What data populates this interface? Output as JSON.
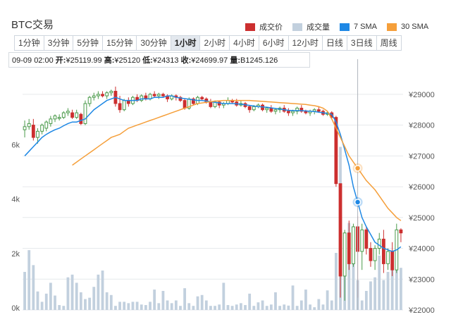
{
  "title": "BTC交易",
  "legend": [
    {
      "label": "成交价",
      "color": "#cc2f2f"
    },
    {
      "label": "成交量",
      "color": "#c2d0de"
    },
    {
      "label": "7 SMA",
      "color": "#1e88e5"
    },
    {
      "label": "30 SMA",
      "color": "#f59f3a"
    }
  ],
  "tabs": [
    "1分钟",
    "3分钟",
    "5分钟",
    "15分钟",
    "30分钟",
    "1小时",
    "2小时",
    "4小时",
    "6小时",
    "12小时",
    "日线",
    "3日线",
    "周线"
  ],
  "active_tab": "1小时",
  "tooltip": {
    "time": "09-09 02:00",
    "open_label": "开:",
    "open": "¥25119.99",
    "high_label": "高:",
    "high": "¥25120",
    "low_label": "低:",
    "low": "¥24313",
    "close_label": "收:",
    "close": "¥24699.97",
    "volume_label": "量:",
    "volume": "B1245.126"
  },
  "chart_data": {
    "type": "candlestick",
    "price_axis_labels": [
      "¥29000",
      "¥28000",
      "¥27000",
      "¥26000",
      "¥25000",
      "¥24000",
      "¥23000",
      "¥22000"
    ],
    "price_axis_values": [
      29000,
      28000,
      27000,
      26000,
      25000,
      24000,
      23000,
      22000
    ],
    "price_range": [
      22000,
      29500
    ],
    "volume_axis_labels": [
      "0k",
      "2k",
      "4k",
      "6k"
    ],
    "volume_axis_values": [
      0,
      2000,
      4000,
      6000
    ],
    "volume_range": [
      0,
      8500
    ],
    "up_color": "#4a9a4a",
    "down_color": "#cc2f2f",
    "ohlc": [
      [
        27850,
        28150,
        27600,
        27950
      ],
      [
        27950,
        28200,
        27850,
        28050
      ],
      [
        28000,
        28200,
        27500,
        27600
      ],
      [
        27600,
        27900,
        27400,
        27800
      ],
      [
        27800,
        28050,
        27700,
        28000
      ],
      [
        27900,
        28150,
        27800,
        28100
      ],
      [
        28050,
        28300,
        27950,
        28200
      ],
      [
        28200,
        28350,
        28100,
        28300
      ],
      [
        28250,
        28350,
        28150,
        28250
      ],
      [
        28250,
        28450,
        28200,
        28400
      ],
      [
        28400,
        28550,
        28300,
        28450
      ],
      [
        28400,
        28500,
        28200,
        28250
      ],
      [
        28250,
        28500,
        28200,
        28400
      ],
      [
        28350,
        28400,
        28000,
        28050
      ],
      [
        28050,
        28800,
        28000,
        28700
      ],
      [
        28700,
        28950,
        28600,
        28900
      ],
      [
        28900,
        29050,
        28800,
        28950
      ],
      [
        28950,
        29100,
        28850,
        29000
      ],
      [
        29000,
        29100,
        28900,
        28950
      ],
      [
        28950,
        29100,
        28850,
        29050
      ],
      [
        29050,
        29150,
        28950,
        29100
      ],
      [
        29100,
        29250,
        28600,
        28700
      ],
      [
        28700,
        28950,
        28400,
        28500
      ],
      [
        28500,
        28850,
        28450,
        28800
      ],
      [
        28800,
        28900,
        28600,
        28700
      ],
      [
        28700,
        28950,
        28650,
        28900
      ],
      [
        28900,
        29000,
        28750,
        28800
      ],
      [
        28800,
        29000,
        28750,
        28950
      ],
      [
        28950,
        29050,
        28800,
        28850
      ],
      [
        28850,
        29050,
        28800,
        29000
      ],
      [
        29000,
        29100,
        28900,
        28950
      ],
      [
        28950,
        29050,
        28850,
        29000
      ],
      [
        29000,
        29050,
        28900,
        28950
      ],
      [
        28950,
        29000,
        28750,
        28850
      ],
      [
        28850,
        29000,
        28800,
        28950
      ],
      [
        28950,
        29000,
        28800,
        28900
      ],
      [
        28900,
        28950,
        28750,
        28800
      ],
      [
        28800,
        28850,
        28500,
        28550
      ],
      [
        28550,
        28900,
        28500,
        28850
      ],
      [
        28850,
        28900,
        28650,
        28700
      ],
      [
        28700,
        28950,
        28650,
        28900
      ],
      [
        28900,
        28950,
        28800,
        28850
      ],
      [
        28850,
        28900,
        28700,
        28750
      ],
      [
        28750,
        28850,
        28550,
        28600
      ],
      [
        28600,
        28800,
        28550,
        28750
      ],
      [
        28750,
        28800,
        28550,
        28650
      ],
      [
        28650,
        28750,
        28550,
        28700
      ],
      [
        28700,
        28900,
        28650,
        28800
      ],
      [
        28800,
        28850,
        28700,
        28750
      ],
      [
        28750,
        28850,
        28600,
        28650
      ],
      [
        28650,
        28800,
        28600,
        28700
      ],
      [
        28700,
        28750,
        28550,
        28600
      ],
      [
        28600,
        28650,
        28400,
        28500
      ],
      [
        28500,
        28650,
        28450,
        28600
      ],
      [
        28600,
        28700,
        28550,
        28650
      ],
      [
        28650,
        28700,
        28450,
        28500
      ],
      [
        28500,
        28600,
        28400,
        28550
      ],
      [
        28550,
        28650,
        28400,
        28450
      ],
      [
        28450,
        28550,
        28350,
        28500
      ],
      [
        28500,
        28600,
        28400,
        28550
      ],
      [
        28550,
        28650,
        28400,
        28450
      ],
      [
        28450,
        28550,
        28300,
        28400
      ],
      [
        28400,
        28500,
        28300,
        28450
      ],
      [
        28450,
        28600,
        28350,
        28550
      ],
      [
        28550,
        28650,
        28400,
        28450
      ],
      [
        28450,
        28500,
        28350,
        28400
      ],
      [
        28400,
        28500,
        28300,
        28450
      ],
      [
        28450,
        28550,
        28350,
        28500
      ],
      [
        28500,
        28600,
        28400,
        28450
      ],
      [
        28450,
        28500,
        28300,
        28350
      ],
      [
        28350,
        28450,
        28300,
        28400
      ],
      [
        28400,
        28450,
        28200,
        28250
      ],
      [
        28250,
        28300,
        26000,
        26100
      ],
      [
        26100,
        26100,
        22400,
        23100
      ],
      [
        23100,
        24600,
        22300,
        24500
      ],
      [
        24500,
        24900,
        23300,
        23500
      ],
      [
        23500,
        24800,
        23400,
        24700
      ],
      [
        24700,
        25050,
        22400,
        23900
      ],
      [
        23900,
        24800,
        23300,
        24600
      ],
      [
        24600,
        24700,
        23800,
        24000
      ],
      [
        24000,
        24200,
        23400,
        23600
      ],
      [
        23600,
        24100,
        23300,
        24000
      ],
      [
        24000,
        24500,
        23800,
        24300
      ],
      [
        24300,
        24600,
        23200,
        23500
      ],
      [
        23500,
        24000,
        23300,
        23900
      ],
      [
        23900,
        24200,
        23100,
        23300
      ],
      [
        23300,
        24800,
        23200,
        24600
      ],
      [
        24600,
        24650,
        24200,
        24500
      ]
    ],
    "volume": [
      1400,
      2200,
      1650,
      680,
      300,
      600,
      1000,
      530,
      180,
      150,
      1200,
      1300,
      1000,
      650,
      400,
      450,
      850,
      1300,
      1450,
      650,
      550,
      150,
      300,
      300,
      250,
      300,
      300,
      200,
      180,
      300,
      750,
      250,
      700,
      350,
      250,
      350,
      150,
      800,
      250,
      150,
      500,
      550,
      350,
      150,
      150,
      200,
      1000,
      180,
      150,
      200,
      250,
      180,
      600,
      150,
      280,
      350,
      150,
      200,
      650,
      150,
      200,
      160,
      900,
      150,
      350,
      750,
      200,
      100,
      400,
      200,
      720,
      350,
      2100,
      6000,
      1500,
      3200,
      2100,
      1100,
      350,
      700,
      1050,
      1200,
      2000,
      1100,
      1400,
      2150,
      1600,
      1550
    ],
    "sma7": [
      27000,
      27150,
      27300,
      27450,
      27600,
      27700,
      27780,
      27850,
      27900,
      27980,
      28050,
      28100,
      28100,
      28150,
      28200,
      28350,
      28500,
      28600,
      28700,
      28800,
      28850,
      28900,
      28850,
      28800,
      28800,
      28800,
      28800,
      28850,
      28850,
      28850,
      28900,
      28900,
      28900,
      28950,
      28950,
      28900,
      28880,
      28860,
      28840,
      28820,
      28800,
      28800,
      28780,
      28760,
      28740,
      28720,
      28700,
      28700,
      28700,
      28690,
      28680,
      28660,
      28640,
      28620,
      28600,
      28590,
      28580,
      28560,
      28540,
      28520,
      28500,
      28480,
      28470,
      28470,
      28470,
      28460,
      28450,
      28440,
      28420,
      28400,
      28380,
      28350,
      28100,
      27700,
      27200,
      26700,
      26000,
      25500,
      25000,
      24700,
      24450,
      24200,
      24100,
      24000,
      23950,
      23900,
      23950,
      24050
    ],
    "sma30_start_index": 11,
    "sma30": [
      26700,
      26800,
      26900,
      27000,
      27100,
      27200,
      27300,
      27400,
      27500,
      27600,
      27650,
      27700,
      27800,
      27900,
      27950,
      28000,
      28050,
      28100,
      28150,
      28200,
      28250,
      28300,
      28350,
      28400,
      28450,
      28500,
      28550,
      28600,
      28650,
      28700,
      28720,
      28740,
      28760,
      28780,
      28790,
      28800,
      28800,
      28800,
      28800,
      28800,
      28800,
      28800,
      28790,
      28780,
      28770,
      28760,
      28750,
      28740,
      28730,
      28720,
      28710,
      28700,
      28690,
      28680,
      28670,
      28650,
      28630,
      28600,
      28550,
      28450,
      28200,
      27900,
      27600,
      27300,
      27000,
      26800,
      26600,
      26400,
      26200,
      26050,
      25900,
      25700,
      25500,
      25300,
      25150,
      25000,
      24900
    ]
  }
}
